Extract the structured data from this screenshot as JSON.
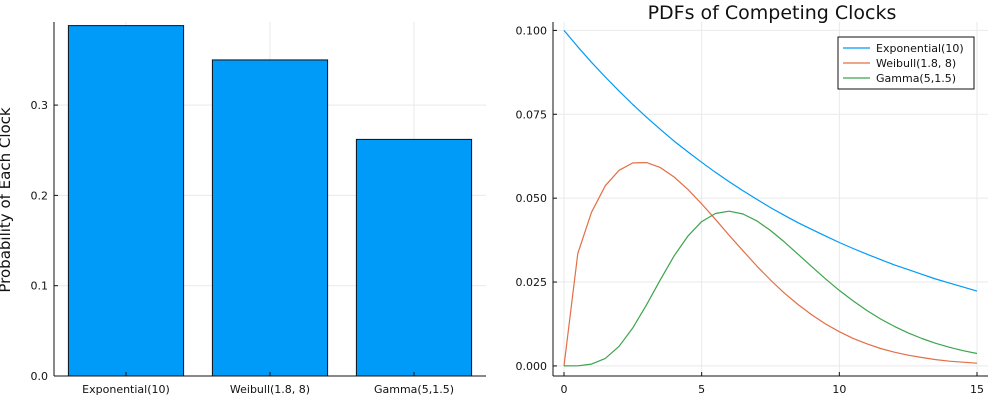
{
  "chart_data": [
    {
      "type": "bar",
      "title": "",
      "xlabel": "",
      "ylabel": "Probability of Each Clock",
      "categories": [
        "Exponential(10)",
        "Weibull(1.8, 8)",
        "Gamma(5,1.5)"
      ],
      "values": [
        0.388,
        0.35,
        0.262
      ],
      "ylim": [
        0,
        0.392
      ],
      "yticks": [
        "0.0",
        "0.1",
        "0.2",
        "0.3"
      ],
      "bar_color": "#009af9",
      "grid": true,
      "legend": "none"
    },
    {
      "type": "line",
      "title": "PDFs of Competing Clocks",
      "xlabel": "",
      "ylabel": "",
      "xlim": [
        -0.4,
        15.4
      ],
      "ylim": [
        -0.003,
        0.1025
      ],
      "xticks": [
        "0",
        "5",
        "10",
        "15"
      ],
      "yticks": [
        "0.000",
        "0.025",
        "0.050",
        "0.075",
        "0.100"
      ],
      "grid": true,
      "legend": "top-right",
      "x": [
        0,
        0.5,
        1,
        1.5,
        2,
        2.5,
        3,
        3.5,
        4,
        4.5,
        5,
        5.5,
        6,
        6.5,
        7,
        7.5,
        8,
        8.5,
        9,
        9.5,
        10,
        10.5,
        11,
        11.5,
        12,
        12.5,
        13,
        13.5,
        14,
        14.5,
        15
      ],
      "series": [
        {
          "name": "Exponential(10)",
          "color": "#009af9",
          "values": [
            0.1,
            0.0951,
            0.0905,
            0.0861,
            0.0819,
            0.0779,
            0.0741,
            0.0705,
            0.067,
            0.0638,
            0.0607,
            0.0577,
            0.0549,
            0.0522,
            0.0497,
            0.0472,
            0.0449,
            0.0427,
            0.0407,
            0.0387,
            0.0368,
            0.035,
            0.0333,
            0.0317,
            0.0301,
            0.0287,
            0.0273,
            0.0259,
            0.0247,
            0.0235,
            0.0223
          ]
        },
        {
          "name": "Weibull(1.8, 8)",
          "color": "#e26f46",
          "values": [
            0.0,
            0.0335,
            0.0458,
            0.0537,
            0.0583,
            0.0605,
            0.0606,
            0.0591,
            0.0563,
            0.0526,
            0.0483,
            0.0437,
            0.0389,
            0.0343,
            0.0298,
            0.0256,
            0.0217,
            0.0183,
            0.0152,
            0.0125,
            0.0102,
            0.0082,
            0.0066,
            0.0052,
            0.0041,
            0.0032,
            0.0025,
            0.0019,
            0.0014,
            0.0011,
            0.0008
          ]
        },
        {
          "name": "Gamma(5,1.5)",
          "color": "#3da44d",
          "values": [
            0.0,
            4e-05,
            0.00054,
            0.00226,
            0.00584,
            0.01133,
            0.01825,
            0.0257,
            0.03278,
            0.0387,
            0.04301,
            0.04544,
            0.04611,
            0.04528,
            0.04324,
            0.04036,
            0.03695,
            0.03329,
            0.02956,
            0.02594,
            0.02252,
            0.01938,
            0.01653,
            0.014,
            0.01178,
            0.00984,
            0.00818,
            0.00676,
            0.00556,
            0.00455,
            0.00371
          ]
        }
      ]
    }
  ]
}
